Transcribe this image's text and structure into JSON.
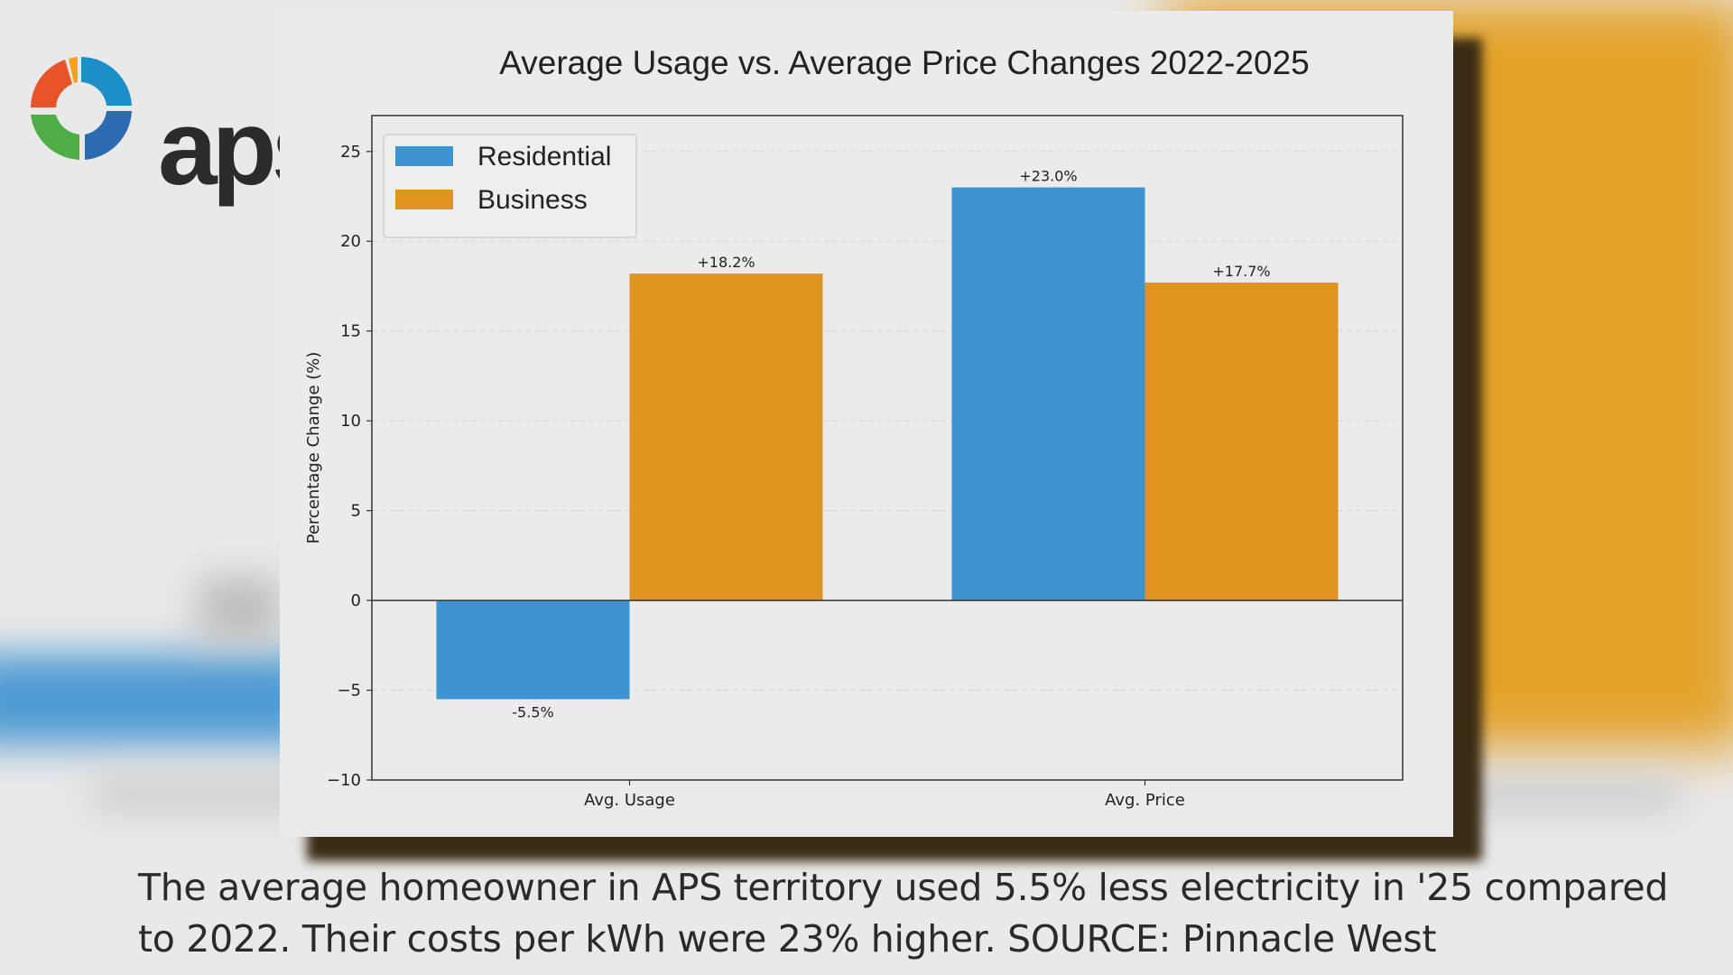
{
  "logo": {
    "word": "aps",
    "registered": "®"
  },
  "chart_data": {
    "type": "bar",
    "title": "Average Usage vs. Average Price Changes 2022-2025",
    "ylabel": "Percentage Change (%)",
    "xlabel": "",
    "categories": [
      "Avg. Usage",
      "Avg. Price"
    ],
    "series": [
      {
        "name": "Residential",
        "values": [
          -5.5,
          23.0
        ],
        "color": "#3d94d0",
        "labels": [
          "-5.5%",
          "+23.0%"
        ]
      },
      {
        "name": "Business",
        "values": [
          18.2,
          17.7
        ],
        "color": "#e09520",
        "labels": [
          "+18.2%",
          "+17.7%"
        ]
      }
    ],
    "ylim": [
      -10,
      27
    ],
    "yticks": [
      -10,
      -5,
      0,
      5,
      10,
      15,
      20,
      25
    ],
    "ytick_labels": [
      "−10",
      "−5",
      "0",
      "5",
      "10",
      "15",
      "20",
      "25"
    ],
    "grid": true,
    "legend_position": "top-left"
  },
  "caption": {
    "line1": "The average homeowner in APS territory used 5.5% less electricity in '25 compared",
    "line2": "to 2022. Their costs per kWh were 23% higher.  SOURCE: Pinnacle West"
  }
}
